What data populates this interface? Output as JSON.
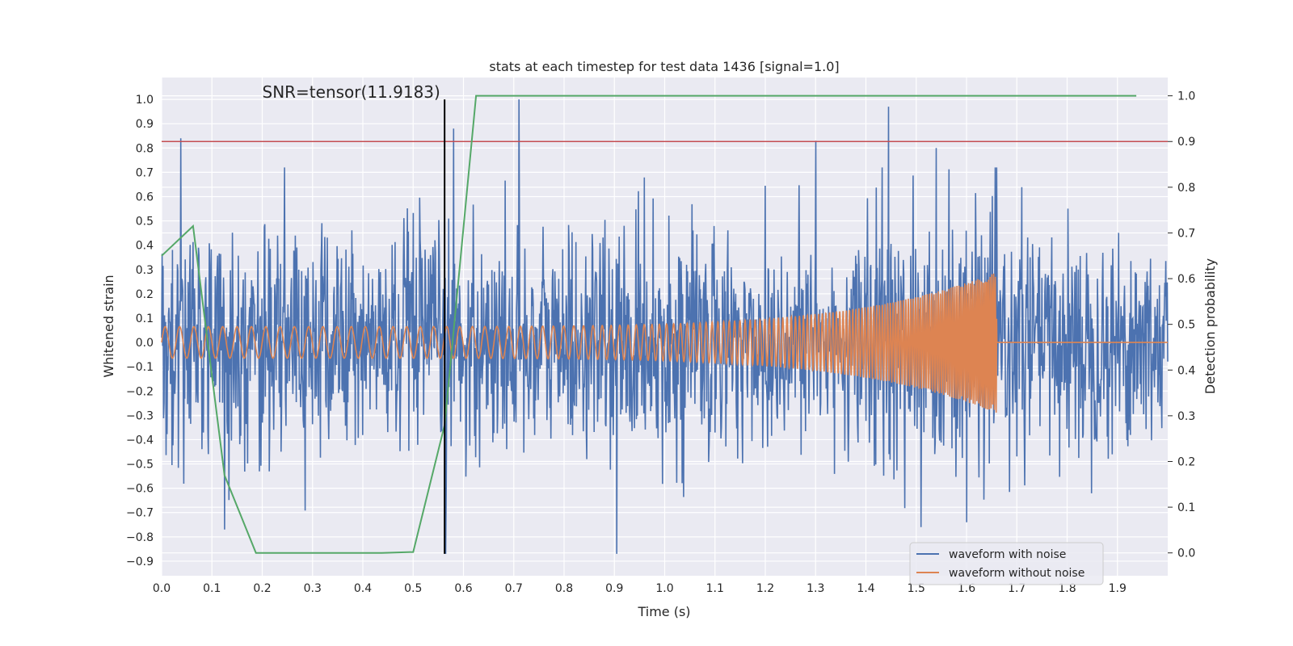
{
  "chart_data": {
    "type": "line",
    "title": "stats at each timestep for test data 1436 [signal=1.0]",
    "xlabel": "Time (s)",
    "ylabel_left": "Whitened strain",
    "ylabel_right": "Detection probability",
    "xlim": [
      0.0,
      2.0
    ],
    "ylim_left": [
      -0.96,
      1.09
    ],
    "ylim_right": [
      -0.05,
      1.04
    ],
    "x_ticks": [
      0.0,
      0.1,
      0.2,
      0.3,
      0.4,
      0.5,
      0.6,
      0.7,
      0.8,
      0.9,
      1.0,
      1.1,
      1.2,
      1.3,
      1.4,
      1.5,
      1.6,
      1.7,
      1.8,
      1.9
    ],
    "y_ticks_left": [
      -0.9,
      -0.8,
      -0.7,
      -0.6,
      -0.5,
      -0.4,
      -0.3,
      -0.2,
      -0.1,
      0.0,
      0.1,
      0.2,
      0.3,
      0.4,
      0.5,
      0.6,
      0.7,
      0.8,
      0.9,
      1.0
    ],
    "y_ticks_right": [
      0.0,
      0.1,
      0.2,
      0.3,
      0.4,
      0.5,
      0.6,
      0.7,
      0.8,
      0.9,
      1.0
    ],
    "grid": true,
    "annotation": {
      "text": "SNR=tensor(11.9183)",
      "x": 0.2,
      "y": 1.0
    },
    "vertical_line": {
      "x": 0.5625,
      "y_from": -0.87,
      "y_to": 1.0,
      "color": "#000000"
    },
    "threshold_line": {
      "y_right": 0.9,
      "color": "#c44e52"
    },
    "series": [
      {
        "name": "waveform with noise",
        "axis": "left",
        "color": "#4c72b0",
        "noise_std": 0.22,
        "n_samples": 2048,
        "seed": 1436,
        "peaks": [
          [
            0.038,
            0.84
          ],
          [
            0.58,
            0.88
          ],
          [
            0.71,
            1.0
          ],
          [
            1.3,
            0.83
          ],
          [
            1.445,
            0.97
          ],
          [
            1.54,
            0.8
          ],
          [
            0.905,
            -0.87
          ],
          [
            0.125,
            -0.77
          ],
          [
            0.565,
            -0.87
          ],
          [
            1.51,
            -0.76
          ],
          [
            1.6,
            -0.74
          ]
        ]
      },
      {
        "name": "waveform without noise",
        "axis": "left",
        "color": "#dd8452",
        "chirp": {
          "t_merge": 1.66,
          "f0": 35,
          "f1": 300,
          "a0": 0.065,
          "a1": 0.29,
          "floor": 0.0
        }
      },
      {
        "name": "detection probability",
        "axis": "right",
        "color": "#55a868",
        "x": [
          0.0,
          0.0625,
          0.125,
          0.1875,
          0.25,
          0.3125,
          0.375,
          0.4375,
          0.5,
          0.5625,
          0.625,
          0.6875,
          0.75,
          1.9375
        ],
        "values": [
          0.65,
          0.715,
          0.17,
          0.0,
          0.0,
          0.0,
          0.0,
          0.0,
          0.002,
          0.28,
          1.0,
          1.0,
          1.0,
          1.0
        ]
      }
    ],
    "legend": {
      "position": "bottom-right",
      "entries": [
        {
          "label": "waveform with noise",
          "color": "#4c72b0"
        },
        {
          "label": "waveform without noise",
          "color": "#dd8452"
        }
      ]
    }
  }
}
